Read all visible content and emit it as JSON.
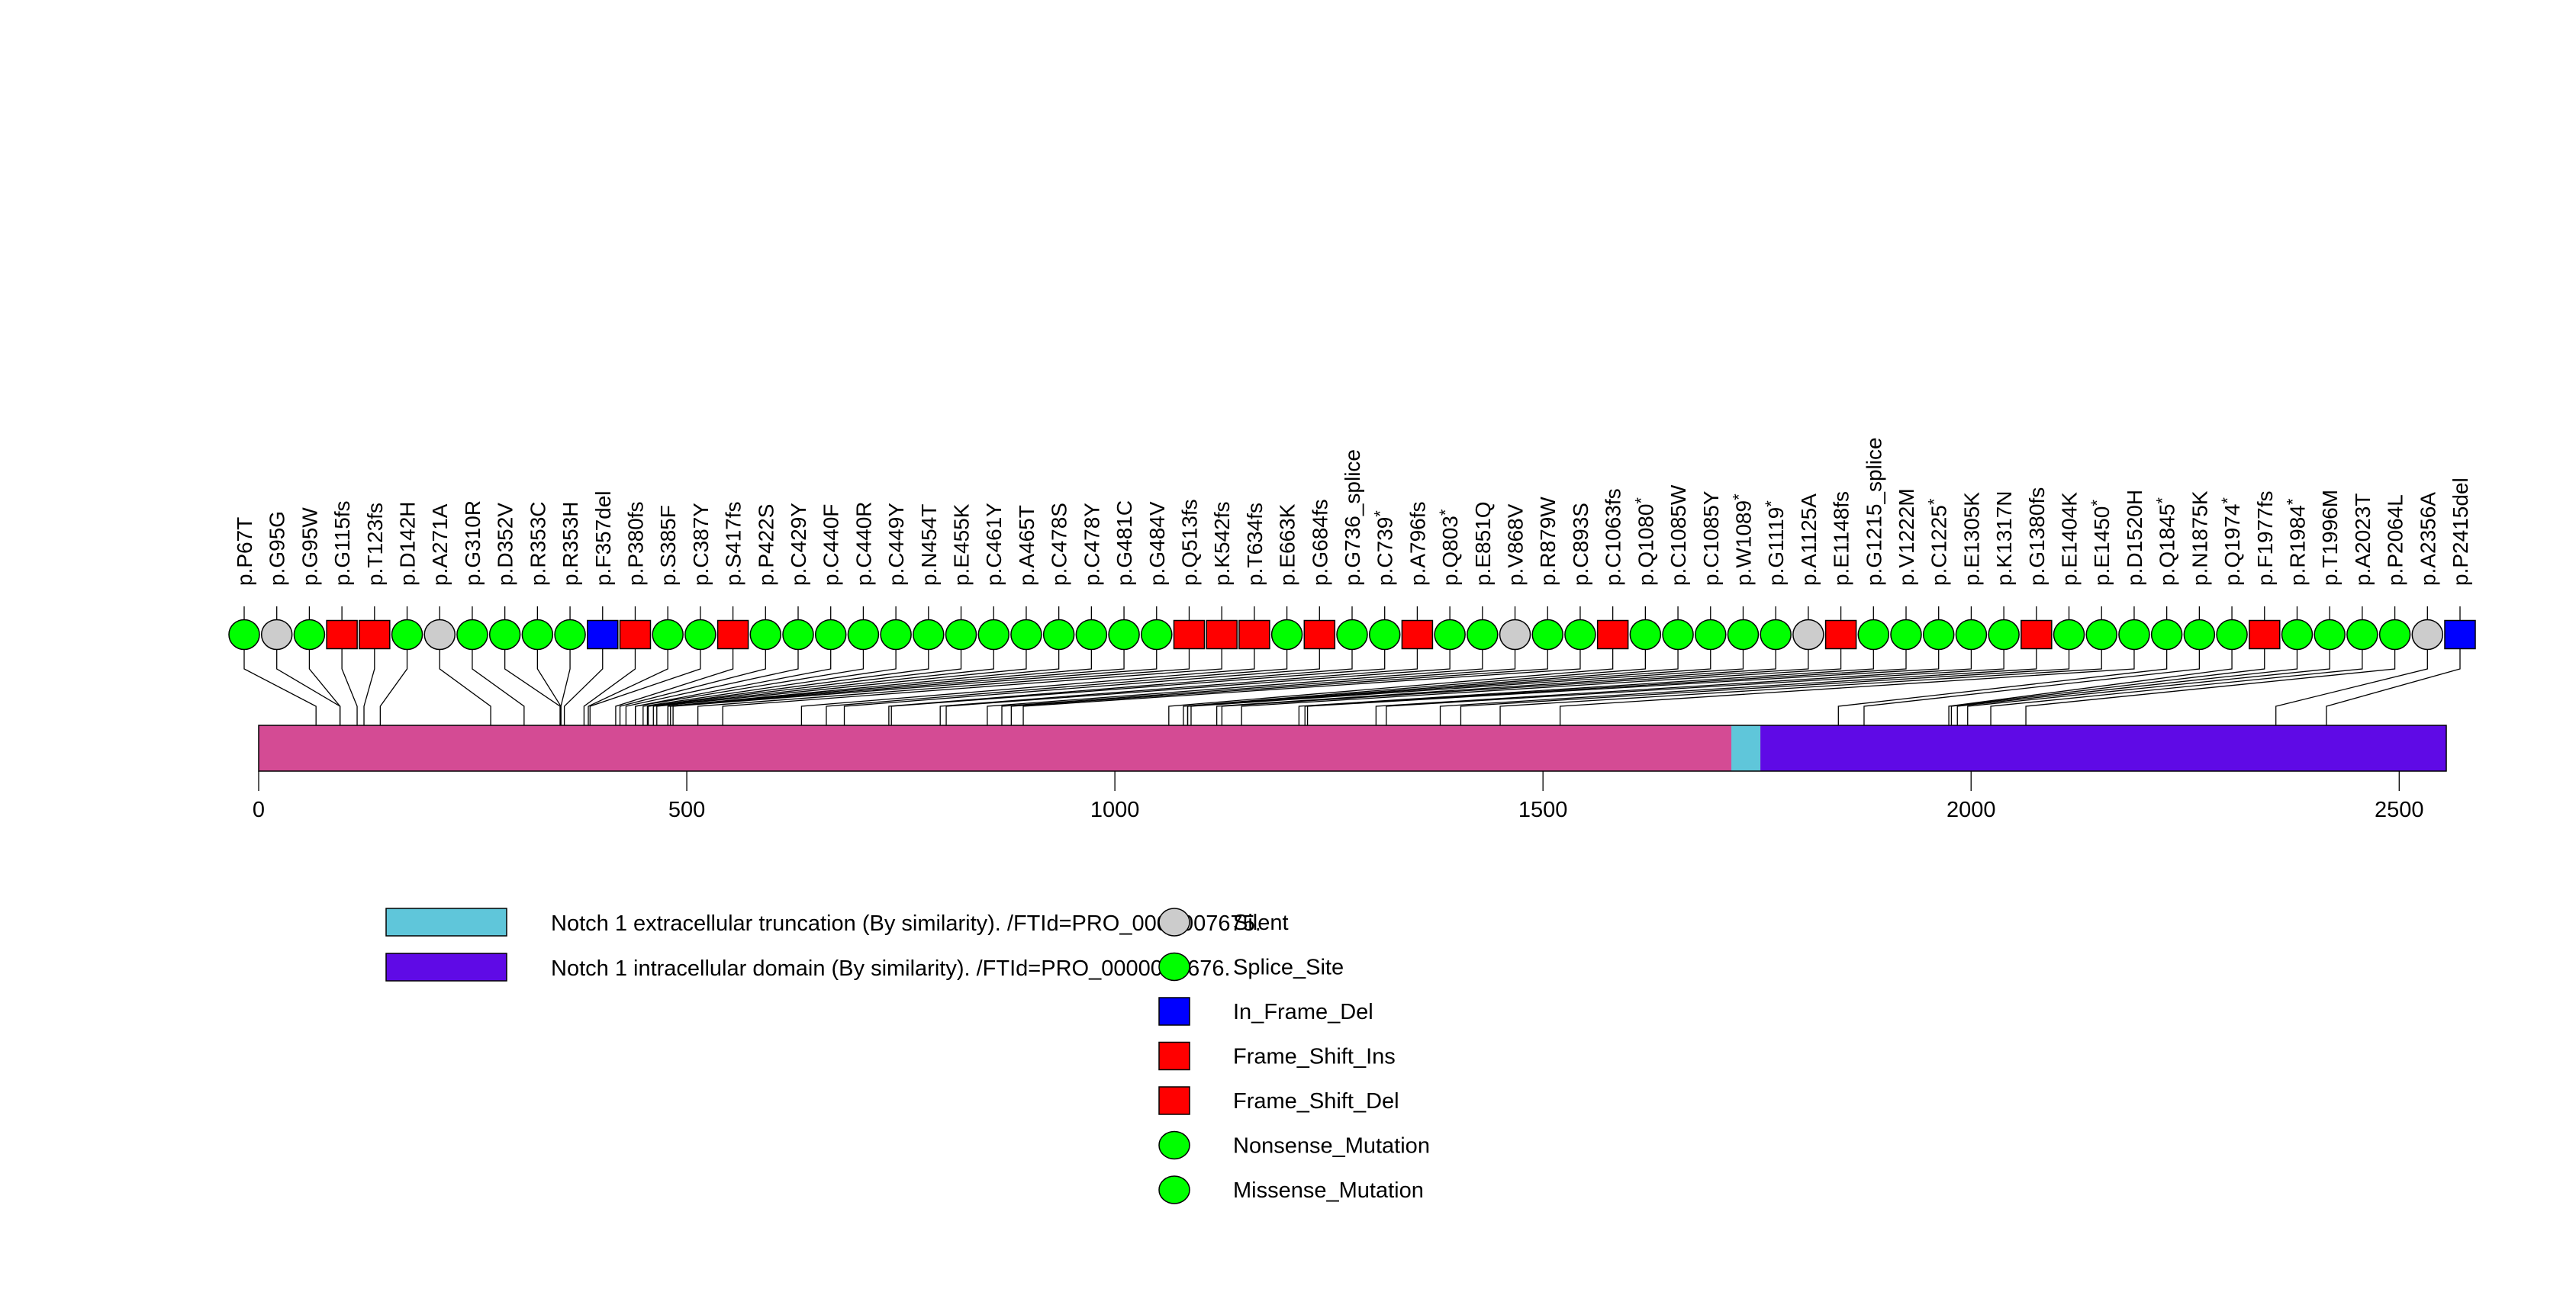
{
  "chart_data": {
    "type": "lollipop",
    "title": "",
    "xlabel": "",
    "ylabel": "",
    "protein_length": 2555,
    "xlim": [
      0,
      2555
    ],
    "x_ticks": [
      0,
      500,
      1000,
      1500,
      2000,
      2500
    ],
    "x_tick_labels": [
      "0",
      "500",
      "1000",
      "1500",
      "2000",
      "2500"
    ],
    "backbone_color": "#D44B94",
    "domains": [
      {
        "name": "Notch 1 extracellular truncation (By similarity). /FTId=PRO_0000007675.",
        "start": 1720,
        "end": 1754,
        "color": "#5FC6DA"
      },
      {
        "name": "Notch 1 intracellular domain (By similarity). /FTId=PRO_0000007676.",
        "start": 1754,
        "end": 2555,
        "color": "#5F0AE6"
      }
    ],
    "mutation_types": [
      {
        "name": "Silent",
        "shape": "circle",
        "color": "#CCCCCC"
      },
      {
        "name": "Splice_Site",
        "shape": "circle",
        "color": "#00FF00"
      },
      {
        "name": "In_Frame_Del",
        "shape": "square",
        "color": "#0000FF"
      },
      {
        "name": "Frame_Shift_Ins",
        "shape": "square",
        "color": "#FF0000"
      },
      {
        "name": "Frame_Shift_Del",
        "shape": "square",
        "color": "#FF0000"
      },
      {
        "name": "Nonsense_Mutation",
        "shape": "circle",
        "color": "#00FF00"
      },
      {
        "name": "Missense_Mutation",
        "shape": "circle",
        "color": "#00FF00"
      }
    ],
    "mutations": [
      {
        "label": "p.P67T",
        "pos": 67,
        "type": "Missense_Mutation"
      },
      {
        "label": "p.G95G",
        "pos": 95,
        "type": "Silent"
      },
      {
        "label": "p.G95W",
        "pos": 95,
        "type": "Missense_Mutation"
      },
      {
        "label": "p.G115fs",
        "pos": 115,
        "type": "Frame_Shift_Del"
      },
      {
        "label": "p.T123fs",
        "pos": 123,
        "type": "Frame_Shift_Del"
      },
      {
        "label": "p.D142H",
        "pos": 142,
        "type": "Missense_Mutation"
      },
      {
        "label": "p.A271A",
        "pos": 271,
        "type": "Silent"
      },
      {
        "label": "p.G310R",
        "pos": 310,
        "type": "Missense_Mutation"
      },
      {
        "label": "p.D352V",
        "pos": 352,
        "type": "Missense_Mutation"
      },
      {
        "label": "p.R353C",
        "pos": 353,
        "type": "Missense_Mutation"
      },
      {
        "label": "p.R353H",
        "pos": 353,
        "type": "Missense_Mutation"
      },
      {
        "label": "p.F357del",
        "pos": 357,
        "type": "In_Frame_Del"
      },
      {
        "label": "p.P380fs",
        "pos": 380,
        "type": "Frame_Shift_Del"
      },
      {
        "label": "p.S385F",
        "pos": 385,
        "type": "Missense_Mutation"
      },
      {
        "label": "p.C387Y",
        "pos": 387,
        "type": "Missense_Mutation"
      },
      {
        "label": "p.S417fs",
        "pos": 417,
        "type": "Frame_Shift_Del"
      },
      {
        "label": "p.P422S",
        "pos": 422,
        "type": "Missense_Mutation"
      },
      {
        "label": "p.C429Y",
        "pos": 429,
        "type": "Missense_Mutation"
      },
      {
        "label": "p.C440F",
        "pos": 440,
        "type": "Missense_Mutation"
      },
      {
        "label": "p.C440R",
        "pos": 440,
        "type": "Missense_Mutation"
      },
      {
        "label": "p.C449Y",
        "pos": 449,
        "type": "Missense_Mutation"
      },
      {
        "label": "p.N454T",
        "pos": 454,
        "type": "Missense_Mutation"
      },
      {
        "label": "p.E455K",
        "pos": 455,
        "type": "Missense_Mutation"
      },
      {
        "label": "p.C461Y",
        "pos": 461,
        "type": "Missense_Mutation"
      },
      {
        "label": "p.A465T",
        "pos": 465,
        "type": "Missense_Mutation"
      },
      {
        "label": "p.C478S",
        "pos": 478,
        "type": "Missense_Mutation"
      },
      {
        "label": "p.C478Y",
        "pos": 478,
        "type": "Missense_Mutation"
      },
      {
        "label": "p.G481C",
        "pos": 481,
        "type": "Missense_Mutation"
      },
      {
        "label": "p.G484V",
        "pos": 484,
        "type": "Missense_Mutation"
      },
      {
        "label": "p.Q513fs",
        "pos": 513,
        "type": "Frame_Shift_Del"
      },
      {
        "label": "p.K542fs",
        "pos": 542,
        "type": "Frame_Shift_Del"
      },
      {
        "label": "p.T634fs",
        "pos": 634,
        "type": "Frame_Shift_Del"
      },
      {
        "label": "p.E663K",
        "pos": 663,
        "type": "Missense_Mutation"
      },
      {
        "label": "p.G684fs",
        "pos": 684,
        "type": "Frame_Shift_Del"
      },
      {
        "label": "p.G736_splice",
        "pos": 736,
        "type": "Splice_Site"
      },
      {
        "label": "p.C739*",
        "pos": 739,
        "type": "Nonsense_Mutation"
      },
      {
        "label": "p.A796fs",
        "pos": 796,
        "type": "Frame_Shift_Del"
      },
      {
        "label": "p.Q803*",
        "pos": 803,
        "type": "Nonsense_Mutation"
      },
      {
        "label": "p.E851Q",
        "pos": 851,
        "type": "Missense_Mutation"
      },
      {
        "label": "p.V868V",
        "pos": 868,
        "type": "Silent"
      },
      {
        "label": "p.R879W",
        "pos": 879,
        "type": "Missense_Mutation"
      },
      {
        "label": "p.C893S",
        "pos": 893,
        "type": "Missense_Mutation"
      },
      {
        "label": "p.C1063fs",
        "pos": 1063,
        "type": "Frame_Shift_Del"
      },
      {
        "label": "p.Q1080*",
        "pos": 1080,
        "type": "Nonsense_Mutation"
      },
      {
        "label": "p.C1085W",
        "pos": 1085,
        "type": "Missense_Mutation"
      },
      {
        "label": "p.C1085Y",
        "pos": 1085,
        "type": "Missense_Mutation"
      },
      {
        "label": "p.W1089*",
        "pos": 1089,
        "type": "Nonsense_Mutation"
      },
      {
        "label": "p.G1119*",
        "pos": 1119,
        "type": "Nonsense_Mutation"
      },
      {
        "label": "p.A1125A",
        "pos": 1125,
        "type": "Silent"
      },
      {
        "label": "p.E1148fs",
        "pos": 1148,
        "type": "Frame_Shift_Del"
      },
      {
        "label": "p.G1215_splice",
        "pos": 1215,
        "type": "Splice_Site"
      },
      {
        "label": "p.V1222M",
        "pos": 1222,
        "type": "Missense_Mutation"
      },
      {
        "label": "p.C1225*",
        "pos": 1225,
        "type": "Nonsense_Mutation"
      },
      {
        "label": "p.E1305K",
        "pos": 1305,
        "type": "Missense_Mutation"
      },
      {
        "label": "p.K1317N",
        "pos": 1317,
        "type": "Missense_Mutation"
      },
      {
        "label": "p.G1380fs",
        "pos": 1380,
        "type": "Frame_Shift_Del"
      },
      {
        "label": "p.E1404K",
        "pos": 1404,
        "type": "Missense_Mutation"
      },
      {
        "label": "p.E1450*",
        "pos": 1450,
        "type": "Nonsense_Mutation"
      },
      {
        "label": "p.D1520H",
        "pos": 1520,
        "type": "Missense_Mutation"
      },
      {
        "label": "p.Q1845*",
        "pos": 1845,
        "type": "Nonsense_Mutation"
      },
      {
        "label": "p.N1875K",
        "pos": 1875,
        "type": "Missense_Mutation"
      },
      {
        "label": "p.Q1974*",
        "pos": 1974,
        "type": "Nonsense_Mutation"
      },
      {
        "label": "p.F1977fs",
        "pos": 1977,
        "type": "Frame_Shift_Del"
      },
      {
        "label": "p.R1984*",
        "pos": 1984,
        "type": "Nonsense_Mutation"
      },
      {
        "label": "p.T1996M",
        "pos": 1996,
        "type": "Missense_Mutation"
      },
      {
        "label": "p.A2023T",
        "pos": 2023,
        "type": "Missense_Mutation"
      },
      {
        "label": "p.P2064L",
        "pos": 2064,
        "type": "Missense_Mutation"
      },
      {
        "label": "p.A2356A",
        "pos": 2356,
        "type": "Silent"
      },
      {
        "label": "p.P2415del",
        "pos": 2415,
        "type": "In_Frame_Del"
      }
    ],
    "legend_placement": "bottom"
  }
}
